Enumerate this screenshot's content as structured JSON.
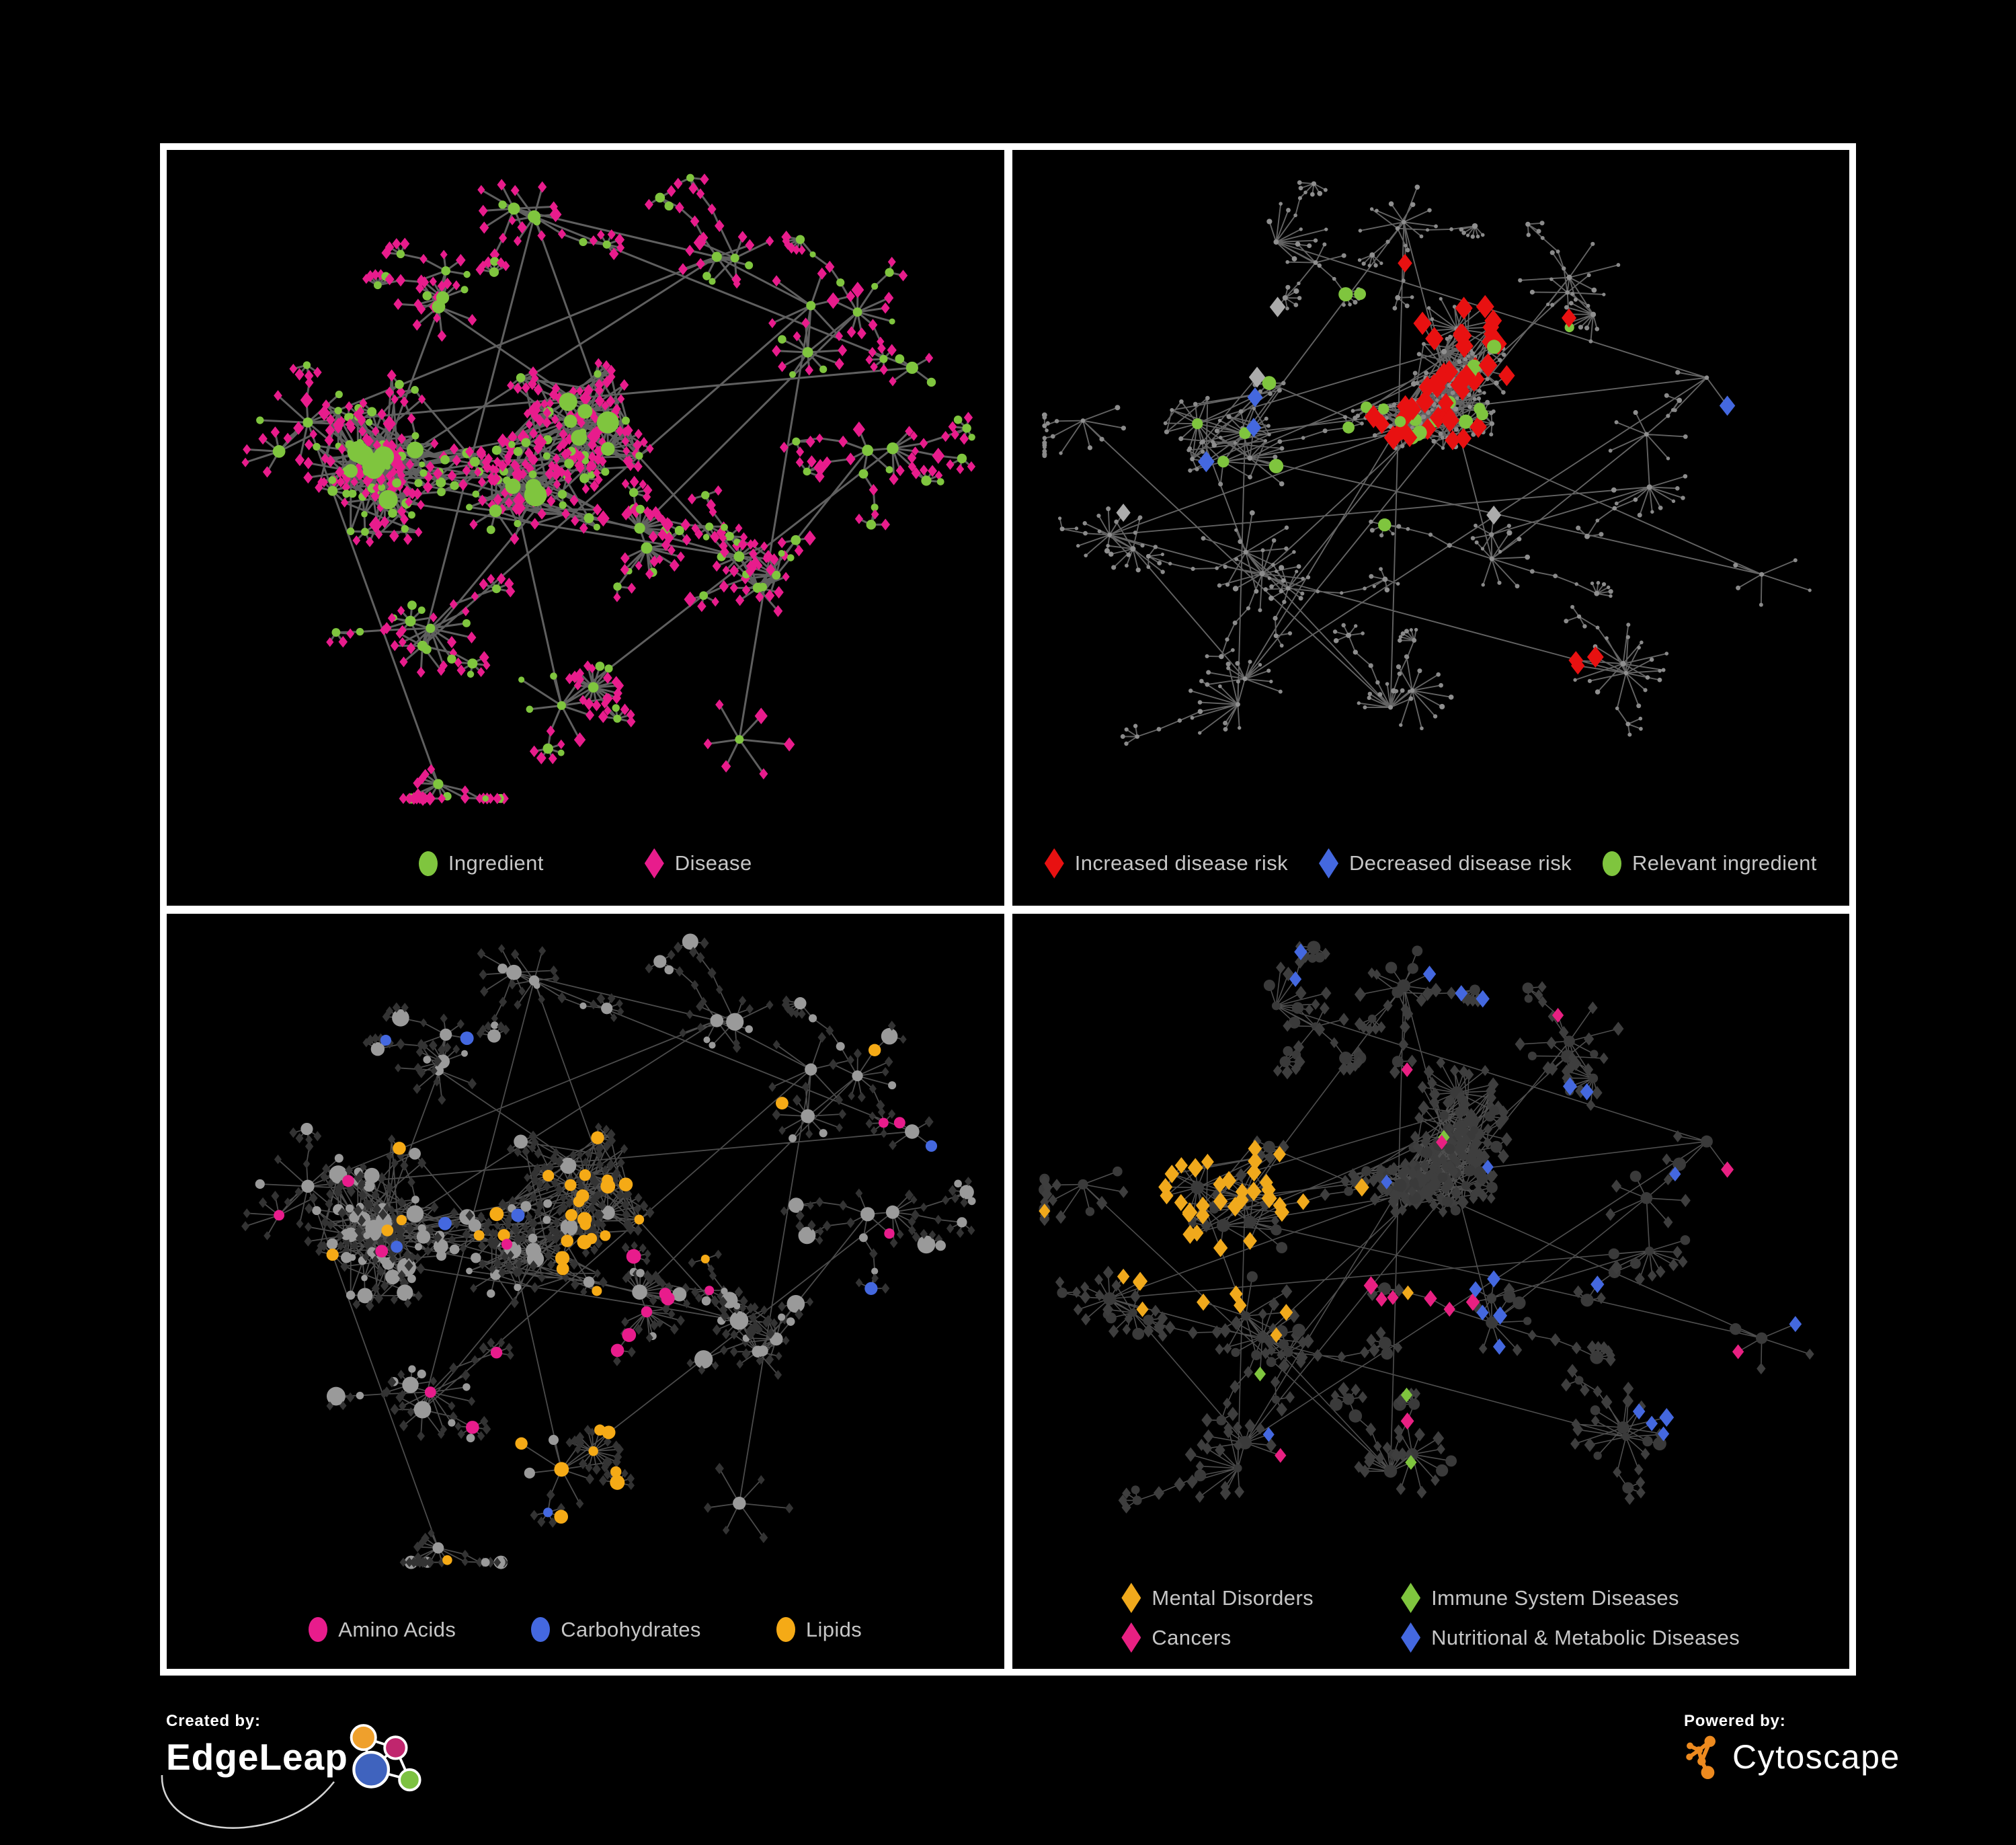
{
  "figure": {
    "background": "#000000",
    "frame_color": "#FFFFFF"
  },
  "panels": [
    {
      "id": "ingredient-disease",
      "legend": [
        {
          "label": "Ingredient",
          "shape": "circle",
          "color": "#7FC53E"
        },
        {
          "label": "Disease",
          "shape": "diamond",
          "color": "#E81C8C"
        }
      ],
      "network": {
        "type": "node-link",
        "layout": "A",
        "edge": {
          "color": "#646464",
          "width": 3,
          "opacity": 0.95
        },
        "node_types": [
          {
            "label": "Ingredient",
            "shape": "circle",
            "color": "#7FC53E"
          },
          {
            "label": "Disease",
            "shape": "diamond",
            "color": "#E81C8C"
          }
        ]
      }
    },
    {
      "id": "disease-risk",
      "legend": [
        {
          "label": "Increased disease risk",
          "shape": "diamond",
          "color": "#E81111"
        },
        {
          "label": "Decreased disease risk",
          "shape": "diamond",
          "color": "#4468DF"
        },
        {
          "label": "Relevant ingredient",
          "shape": "circle",
          "color": "#7FC53E"
        }
      ],
      "network": {
        "type": "node-link",
        "layout": "B",
        "edge": {
          "color": "#7C7C7C",
          "width": 1.9,
          "opacity": 0.8
        },
        "base": {
          "disease": "#8A8A8A",
          "ingredient": "#8F8F8F",
          "neutral_diamond": "#ABABAB"
        },
        "node_types": [
          {
            "label": "Increased disease risk",
            "shape": "diamond",
            "color": "#E81111"
          },
          {
            "label": "Decreased disease risk",
            "shape": "diamond",
            "color": "#4468DF"
          },
          {
            "label": "Neutral disease",
            "shape": "diamond",
            "color": "#ABABAB"
          },
          {
            "label": "Relevant ingredient",
            "shape": "circle",
            "color": "#7FC53E"
          },
          {
            "label": "Other node",
            "shape": "circle",
            "color": "#8A8A8A"
          }
        ]
      }
    },
    {
      "id": "macronutrients",
      "legend": [
        {
          "label": "Amino Acids",
          "shape": "circle",
          "color": "#E81C8C"
        },
        {
          "label": "Carbohydrates",
          "shape": "circle",
          "color": "#4468DF"
        },
        {
          "label": "Lipids",
          "shape": "circle",
          "color": "#F5AA16"
        }
      ],
      "network": {
        "type": "node-link",
        "layout": "A",
        "edge": {
          "color": "#6B6B6B",
          "width": 1.8,
          "opacity": 0.7
        },
        "base": {
          "ingredient": "#9A9A9A",
          "disease": "#333333"
        },
        "node_types": [
          {
            "label": "Amino Acids",
            "shape": "circle",
            "color": "#E81C8C"
          },
          {
            "label": "Carbohydrates",
            "shape": "circle",
            "color": "#4468DF"
          },
          {
            "label": "Lipids",
            "shape": "circle",
            "color": "#F5AA16"
          },
          {
            "label": "Other ingredient",
            "shape": "circle",
            "color": "#9A9A9A"
          },
          {
            "label": "Disease",
            "shape": "diamond",
            "color": "#333333"
          }
        ]
      }
    },
    {
      "id": "disease-categories",
      "legend": [
        {
          "label": "Mental Disorders",
          "shape": "diamond",
          "color": "#F0A91C"
        },
        {
          "label": "Immune System Diseases",
          "shape": "diamond",
          "color": "#7FC53E"
        },
        {
          "label": "Cancers",
          "shape": "diamond",
          "color": "#E82082"
        },
        {
          "label": "Nutritional & Metabolic Diseases",
          "shape": "diamond",
          "color": "#4468DF"
        }
      ],
      "network": {
        "type": "node-link",
        "layout": "B",
        "edge": {
          "color": "#787878",
          "width": 1.6,
          "opacity": 0.65
        },
        "base": {
          "disease": "#3E3E3E",
          "ingredient": "#3A3A3A"
        },
        "node_types": [
          {
            "label": "Mental Disorders",
            "shape": "diamond",
            "color": "#F0A91C"
          },
          {
            "label": "Immune System Diseases",
            "shape": "diamond",
            "color": "#7FC53E"
          },
          {
            "label": "Cancers",
            "shape": "diamond",
            "color": "#E82082"
          },
          {
            "label": "Nutritional & Metabolic Diseases",
            "shape": "diamond",
            "color": "#4468DF"
          },
          {
            "label": "Other disease",
            "shape": "diamond",
            "color": "#3E3E3E"
          }
        ]
      }
    }
  ],
  "footer": {
    "created_by": {
      "label": "Created by:",
      "brand": "EdgeLeap"
    },
    "powered_by": {
      "label": "Powered by:",
      "brand": "Cytoscape"
    },
    "edgeleap_logo_colors": {
      "orange": "#EFA02C",
      "magenta": "#C0266E",
      "blue": "#3F63BE",
      "green": "#7DC242"
    },
    "cytoscape_logo_color": "#ED8A1F"
  }
}
